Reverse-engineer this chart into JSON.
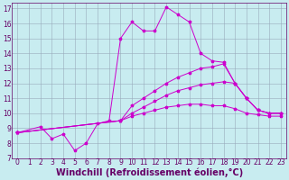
{
  "xlabel": "Windchill (Refroidissement éolien,°C)",
  "background_color": "#c8ecf0",
  "line_color": "#cc00cc",
  "grid_color": "#99aabb",
  "xlim": [
    -0.5,
    23.5
  ],
  "ylim": [
    7,
    17.4
  ],
  "yticks": [
    7,
    8,
    9,
    10,
    11,
    12,
    13,
    14,
    15,
    16,
    17
  ],
  "xticks": [
    0,
    1,
    2,
    3,
    4,
    5,
    6,
    7,
    8,
    9,
    10,
    11,
    12,
    13,
    14,
    15,
    16,
    17,
    18,
    19,
    20,
    21,
    22,
    23
  ],
  "curve1_x": [
    0,
    2,
    3,
    4,
    5,
    6,
    7,
    8,
    9,
    10,
    11,
    12,
    13,
    14,
    15,
    16,
    17,
    18,
    19,
    20,
    21,
    22,
    23
  ],
  "curve1_y": [
    8.7,
    9.1,
    8.3,
    8.6,
    7.5,
    8.0,
    9.3,
    9.5,
    15.0,
    16.1,
    15.5,
    15.5,
    17.1,
    16.6,
    16.1,
    14.0,
    13.5,
    13.4,
    12.0,
    11.0,
    10.2,
    10.0,
    10.0
  ],
  "curve2_x": [
    0,
    9,
    10,
    11,
    12,
    13,
    14,
    15,
    16,
    17,
    18,
    19,
    20,
    21,
    22,
    23
  ],
  "curve2_y": [
    8.7,
    9.5,
    10.5,
    11.0,
    11.5,
    12.0,
    12.4,
    12.7,
    13.0,
    13.1,
    13.3,
    12.0,
    11.0,
    10.2,
    10.0,
    10.0
  ],
  "curve3_x": [
    0,
    9,
    10,
    11,
    12,
    13,
    14,
    15,
    16,
    17,
    18,
    19,
    20,
    21,
    22,
    23
  ],
  "curve3_y": [
    8.7,
    9.5,
    10.0,
    10.4,
    10.8,
    11.2,
    11.5,
    11.7,
    11.9,
    12.0,
    12.1,
    12.0,
    11.0,
    10.2,
    10.0,
    10.0
  ],
  "curve4_x": [
    0,
    9,
    10,
    11,
    12,
    13,
    14,
    15,
    16,
    17,
    18,
    19,
    20,
    21,
    22,
    23
  ],
  "curve4_y": [
    8.7,
    9.5,
    9.8,
    10.0,
    10.2,
    10.4,
    10.5,
    10.6,
    10.6,
    10.5,
    10.5,
    10.3,
    10.0,
    9.9,
    9.8,
    9.8
  ],
  "tick_color": "#660066",
  "tick_fontsize": 5.5,
  "xlabel_fontsize": 7.0
}
